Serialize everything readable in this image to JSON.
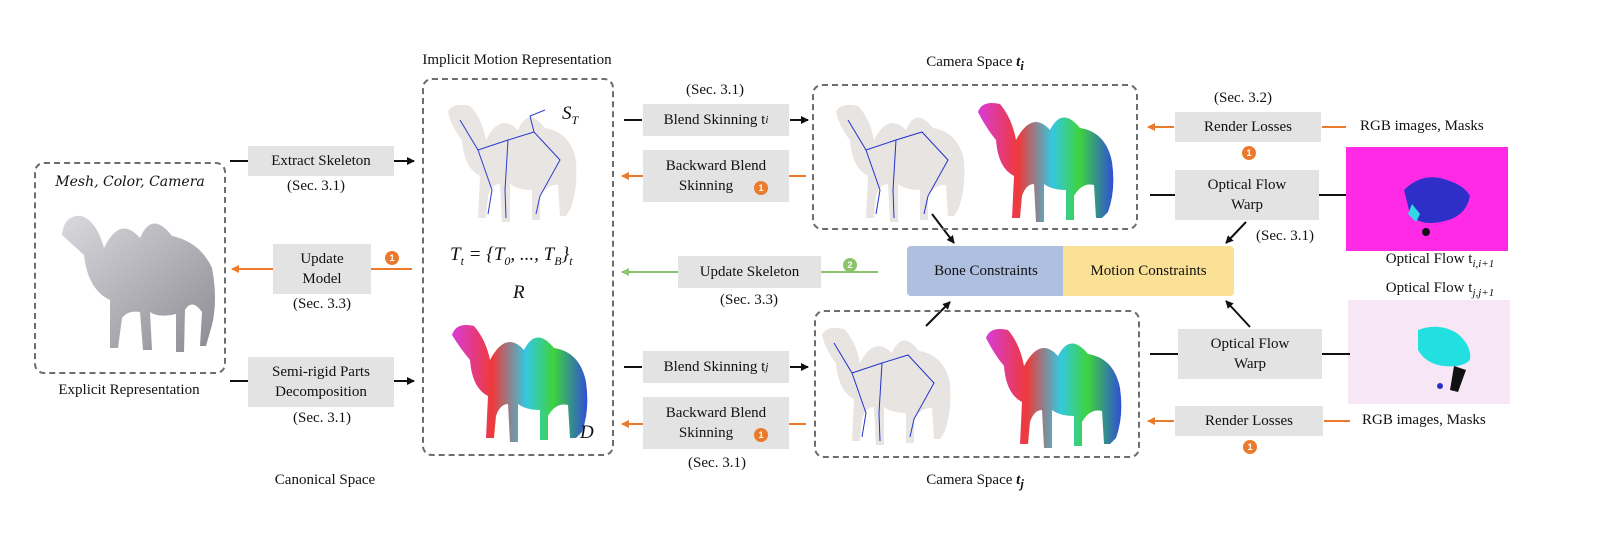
{
  "labels": {
    "implicit_title": "Implicit Motion Representation",
    "camera_top_title": "Camera Space",
    "camera_top_sub": "i",
    "camera_bottom_title": "Camera Space",
    "camera_bottom_sub": "j",
    "canonical_space": "Canonical Space",
    "explicit_repr": "Explicit Representation",
    "mesh_color_camera": "Mesh, Color, Camera",
    "s_t": "S",
    "s_t_sub": "T",
    "d": "D",
    "r": "R",
    "formula": "T",
    "formula_rest": " = {T",
    "formula_mid": ", ..., T",
    "formula_end": "}",
    "formula_sub_t": "t",
    "formula_sub_0": "0",
    "formula_sub_b": "B",
    "rgb_top": "RGB images, Masks",
    "rgb_bottom": "RGB images, Masks",
    "optical_flow_top": "Optical Flow t",
    "optical_flow_top_sub": "i,i+1",
    "optical_flow_bottom": "Optical Flow t",
    "optical_flow_bottom_sub": "j,j+1"
  },
  "boxes": {
    "extract_skeleton": "Extract Skeleton",
    "update_model_1": "Update",
    "update_model_2": "Model",
    "semi_rigid_1": "Semi-rigid Parts",
    "semi_rigid_2": "Decomposition",
    "blend_top": "Blend Skinning t",
    "blend_top_sub": "i",
    "backward_top_1": "Backward Blend",
    "backward_top_2": "Skinning",
    "update_skeleton": "Update Skeleton",
    "blend_bottom": "Blend Skinning t",
    "blend_bottom_sub": "j",
    "backward_bottom_1": "Backward Blend",
    "backward_bottom_2": "Skinning",
    "render_top": "Render Losses",
    "render_bottom": "Render Losses",
    "optical_top_1": "Optical Flow",
    "optical_top_2": "Warp",
    "optical_bottom_1": "Optical Flow",
    "optical_bottom_2": "Warp",
    "bone_constraints": "Bone Constraints",
    "motion_constraints": "Motion Constraints"
  },
  "sections": {
    "extract": "(Sec. 3.1)",
    "update_model": "(Sec. 3.3)",
    "semi_rigid": "(Sec. 3.1)",
    "blend_top": "(Sec. 3.1)",
    "update_skeleton": "(Sec. 3.3)",
    "backward_bottom": "(Sec. 3.1)",
    "render_top": "(Sec. 3.2)",
    "optical_top": "(Sec. 3.1)"
  },
  "badges": {
    "one": "1",
    "two": "2"
  },
  "colors": {
    "orange": "#ea7a2c",
    "green": "#8cc46b",
    "bone_blue": "#aebfe0",
    "motion_yellow": "#fbe196",
    "box_grey": "#e3e3e3",
    "magenta": "#ff2ae6"
  }
}
